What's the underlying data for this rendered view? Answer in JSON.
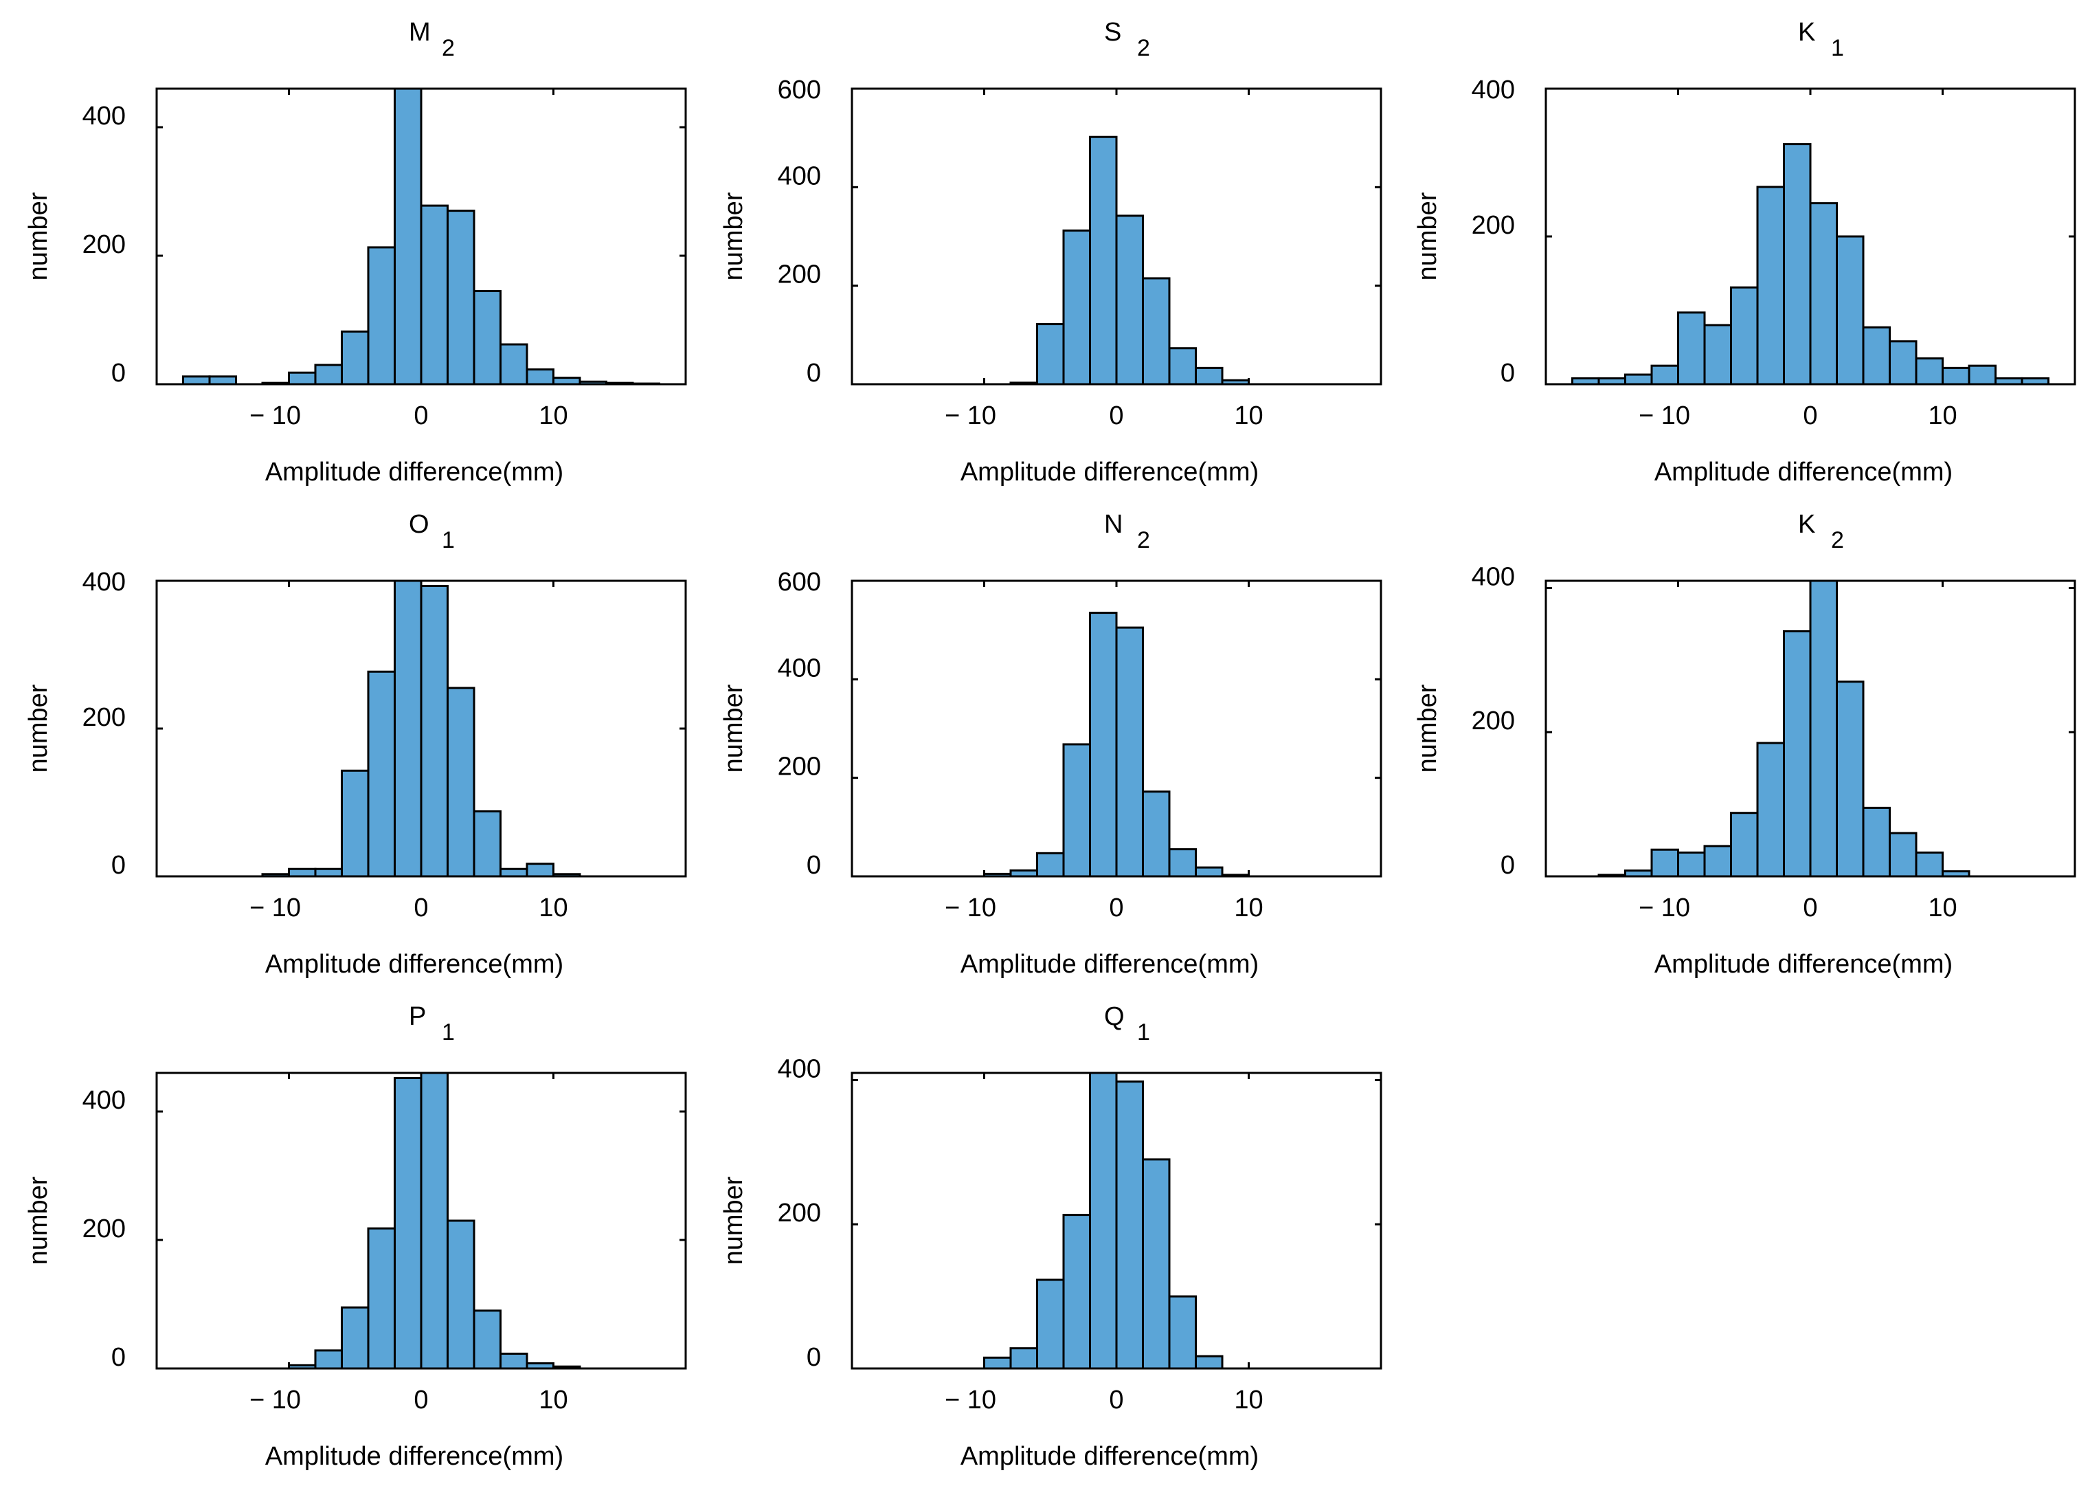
{
  "figure": {
    "bar_color": "#5ba5d7",
    "edge_color": "#000000",
    "background": "#ffffff"
  },
  "chart_data": [
    {
      "type": "bar",
      "title": "M",
      "title_subscript": "2",
      "xlabel": "Amplitude difference(mm)",
      "ylabel": "number",
      "xlim": [
        -20,
        20
      ],
      "ylim": [
        0,
        460
      ],
      "xticks": [
        -10,
        0,
        10
      ],
      "xtick_labels": [
        "− 10",
        "0",
        "10"
      ],
      "yticks": [
        0,
        200,
        400
      ],
      "ytick_labels": [
        "0",
        "200",
        "400"
      ],
      "bin_edges": [
        -18,
        -16,
        -14,
        -12,
        -10,
        -8,
        -6,
        -4,
        -2,
        0,
        2,
        4,
        6,
        8,
        10,
        12,
        14,
        16,
        18
      ],
      "values": [
        12,
        12,
        0,
        2,
        18,
        30,
        82,
        213,
        465,
        278,
        270,
        145,
        62,
        23,
        10,
        4,
        2,
        1
      ]
    },
    {
      "type": "bar",
      "title": "S",
      "title_subscript": "2",
      "xlabel": "Amplitude difference(mm)",
      "ylabel": "number",
      "xlim": [
        -20,
        20
      ],
      "ylim": [
        0,
        600
      ],
      "xticks": [
        -10,
        0,
        10
      ],
      "xtick_labels": [
        "− 10",
        "0",
        "10"
      ],
      "yticks": [
        0,
        200,
        400,
        600
      ],
      "ytick_labels": [
        "0",
        "200",
        "400",
        "600"
      ],
      "bin_edges": [
        -8,
        -6,
        -4,
        -2,
        0,
        2,
        4,
        6,
        8,
        10
      ],
      "values": [
        3,
        122,
        312,
        502,
        342,
        215,
        73,
        33,
        8
      ]
    },
    {
      "type": "bar",
      "title": "K",
      "title_subscript": "1",
      "xlabel": "Amplitude difference(mm)",
      "ylabel": "number",
      "xlim": [
        -20,
        20
      ],
      "ylim": [
        0,
        400
      ],
      "xticks": [
        -10,
        0,
        10
      ],
      "xtick_labels": [
        "− 10",
        "0",
        "10"
      ],
      "yticks": [
        0,
        200,
        400
      ],
      "ytick_labels": [
        "0",
        "200",
        "400"
      ],
      "bin_edges": [
        -18,
        -16,
        -14,
        -12,
        -10,
        -8,
        -6,
        -4,
        -2,
        0,
        2,
        4,
        6,
        8,
        10,
        12,
        14,
        16,
        18
      ],
      "values": [
        8,
        8,
        13,
        25,
        97,
        80,
        131,
        267,
        325,
        245,
        200,
        77,
        58,
        35,
        22,
        25,
        8,
        8
      ]
    },
    {
      "type": "bar",
      "title": "O",
      "title_subscript": "1",
      "xlabel": "Amplitude difference(mm)",
      "ylabel": "number",
      "xlim": [
        -20,
        20
      ],
      "ylim": [
        0,
        400
      ],
      "xticks": [
        -10,
        0,
        10
      ],
      "xtick_labels": [
        "− 10",
        "0",
        "10"
      ],
      "yticks": [
        0,
        200,
        400
      ],
      "ytick_labels": [
        "0",
        "200",
        "400"
      ],
      "bin_edges": [
        -12,
        -10,
        -8,
        -6,
        -4,
        -2,
        0,
        2,
        4,
        6,
        8,
        10,
        12
      ],
      "values": [
        3,
        10,
        10,
        143,
        277,
        400,
        393,
        255,
        88,
        10,
        17,
        3
      ]
    },
    {
      "type": "bar",
      "title": "N",
      "title_subscript": "2",
      "xlabel": "Amplitude difference(mm)",
      "ylabel": "number",
      "xlim": [
        -20,
        20
      ],
      "ylim": [
        0,
        600
      ],
      "xticks": [
        -10,
        0,
        10
      ],
      "xtick_labels": [
        "− 10",
        "0",
        "10"
      ],
      "yticks": [
        0,
        200,
        400,
        600
      ],
      "ytick_labels": [
        "0",
        "200",
        "400",
        "600"
      ],
      "bin_edges": [
        -10,
        -8,
        -6,
        -4,
        -2,
        0,
        2,
        4,
        6,
        8,
        10
      ],
      "values": [
        5,
        12,
        47,
        268,
        535,
        505,
        172,
        55,
        18,
        3
      ]
    },
    {
      "type": "bar",
      "title": "K",
      "title_subscript": "2",
      "xlabel": "Amplitude difference(mm)",
      "ylabel": "number",
      "xlim": [
        -20,
        20
      ],
      "ylim": [
        0,
        410
      ],
      "xticks": [
        -10,
        0,
        10
      ],
      "xtick_labels": [
        "− 10",
        "0",
        "10"
      ],
      "yticks": [
        0,
        200,
        400
      ],
      "ytick_labels": [
        "0",
        "200",
        "400"
      ],
      "bin_edges": [
        -16,
        -14,
        -12,
        -10,
        -8,
        -6,
        -4,
        -2,
        0,
        2,
        4,
        6,
        8,
        10,
        12
      ],
      "values": [
        2,
        8,
        37,
        33,
        42,
        88,
        185,
        340,
        415,
        270,
        95,
        60,
        33,
        7
      ]
    },
    {
      "type": "bar",
      "title": "P",
      "title_subscript": "1",
      "xlabel": "Amplitude difference(mm)",
      "ylabel": "number",
      "xlim": [
        -20,
        20
      ],
      "ylim": [
        0,
        460
      ],
      "xticks": [
        -10,
        0,
        10
      ],
      "xtick_labels": [
        "− 10",
        "0",
        "10"
      ],
      "yticks": [
        0,
        200,
        400
      ],
      "ytick_labels": [
        "0",
        "200",
        "400"
      ],
      "bin_edges": [
        -10,
        -8,
        -6,
        -4,
        -2,
        0,
        2,
        4,
        6,
        8,
        10,
        12
      ],
      "values": [
        5,
        28,
        95,
        218,
        452,
        465,
        230,
        90,
        23,
        8,
        3
      ]
    },
    {
      "type": "bar",
      "title": "Q",
      "title_subscript": "1",
      "xlabel": "Amplitude difference(mm)",
      "ylabel": "number",
      "xlim": [
        -20,
        20
      ],
      "ylim": [
        0,
        410
      ],
      "xticks": [
        -10,
        0,
        10
      ],
      "xtick_labels": [
        "− 10",
        "0",
        "10"
      ],
      "yticks": [
        0,
        200,
        400
      ],
      "ytick_labels": [
        "0",
        "200",
        "400"
      ],
      "bin_edges": [
        -10,
        -8,
        -6,
        -4,
        -2,
        0,
        2,
        4,
        6,
        8
      ],
      "values": [
        15,
        28,
        123,
        213,
        410,
        398,
        290,
        100,
        17
      ]
    }
  ]
}
